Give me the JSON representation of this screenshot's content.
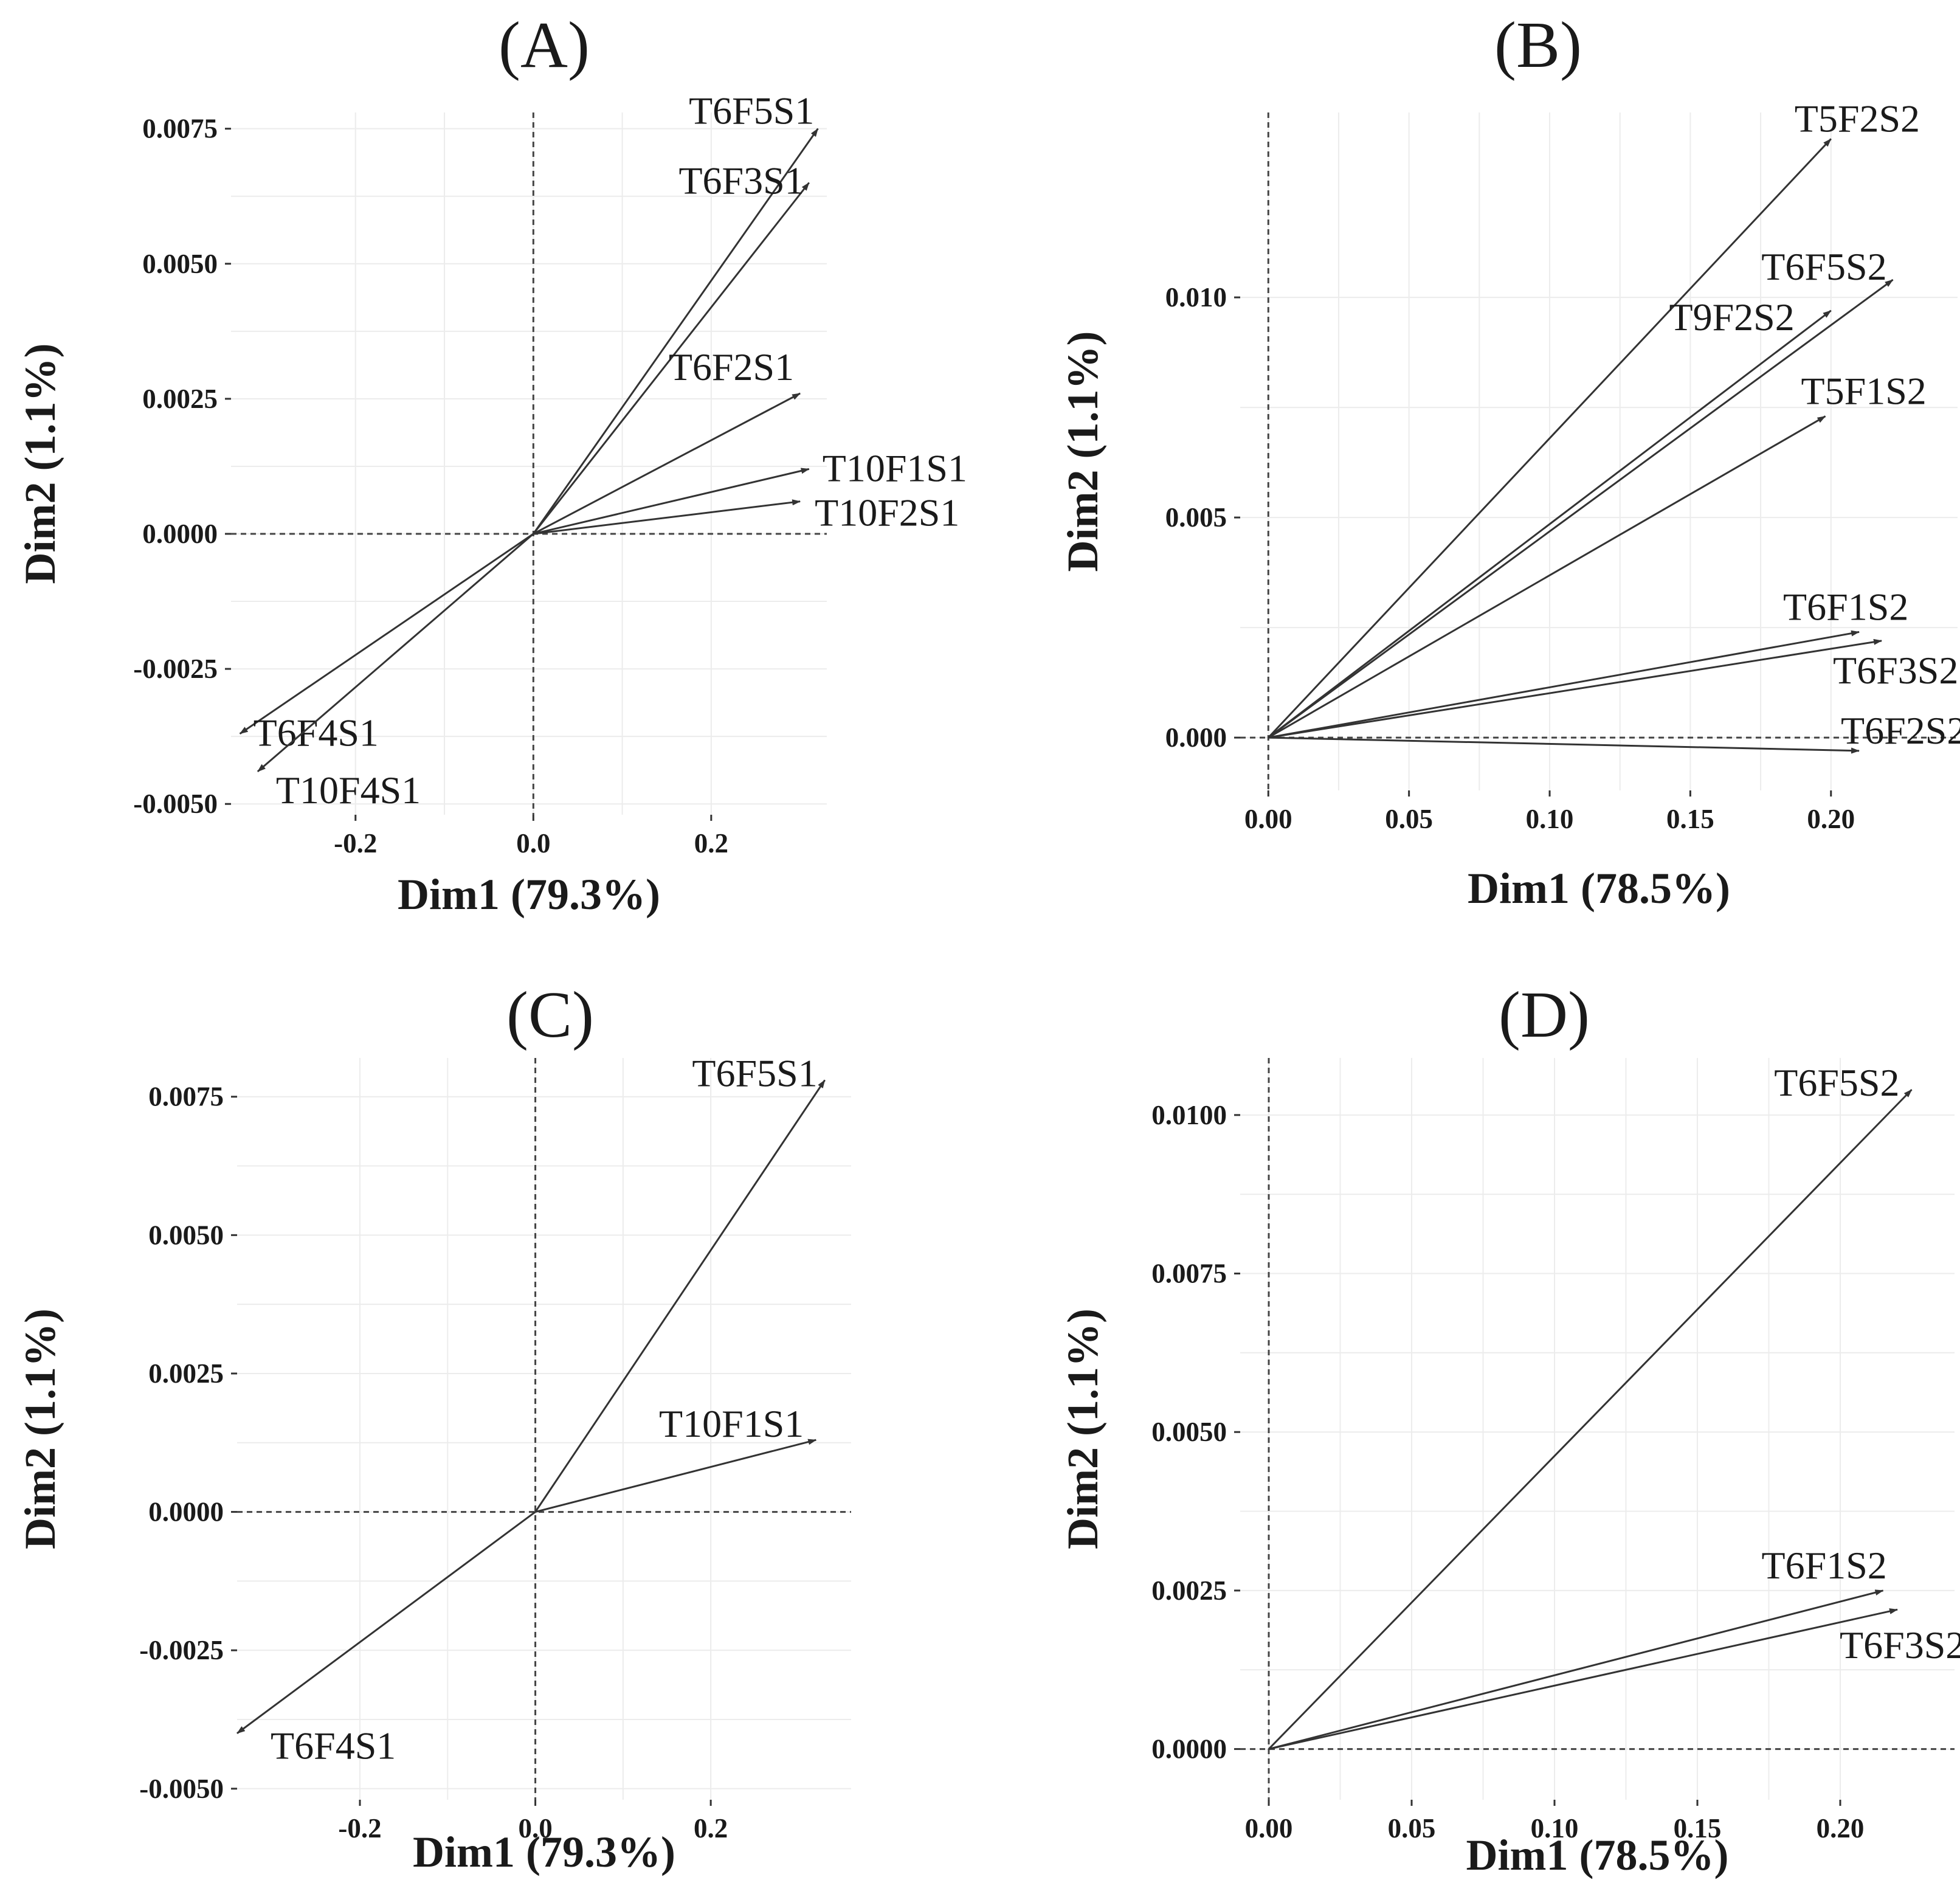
{
  "chart_data": [
    {
      "type": "vector",
      "title": "(A)",
      "xlabel": "Dim1 (79.3%)",
      "ylabel": "Dim2 (1.1%)",
      "xlim": [
        -0.34,
        0.33
      ],
      "ylim": [
        -0.0052,
        0.0078
      ],
      "xticks": [
        -0.2,
        0.0,
        0.2
      ],
      "xtick_labels": [
        "-0.2",
        "0.0",
        "0.2"
      ],
      "yticks": [
        -0.005,
        -0.0025,
        0.0,
        0.0025,
        0.005,
        0.0075
      ],
      "ytick_labels": [
        "-0.0050",
        "-0.0025",
        "0.0000",
        "0.0025",
        "0.0050",
        "0.0075"
      ],
      "vectors": [
        {
          "name": "T6F5S1",
          "x": 0.32,
          "y": 0.0075
        },
        {
          "name": "T6F3S1",
          "x": 0.31,
          "y": 0.0065
        },
        {
          "name": "T6F2S1",
          "x": 0.3,
          "y": 0.0026
        },
        {
          "name": "T10F1S1",
          "x": 0.31,
          "y": 0.0012
        },
        {
          "name": "T10F2S1",
          "x": 0.3,
          "y": 0.0006
        },
        {
          "name": "T6F4S1",
          "x": -0.33,
          "y": -0.0037
        },
        {
          "name": "T10F4S1",
          "x": -0.31,
          "y": -0.0044
        }
      ]
    },
    {
      "type": "vector",
      "title": "(B)",
      "xlabel": "Dim1 (78.5%)",
      "ylabel": "Dim2 (1.1%)",
      "xlim": [
        -0.01,
        0.245
      ],
      "ylim": [
        -0.0012,
        0.0142
      ],
      "xticks": [
        0.0,
        0.05,
        0.1,
        0.15,
        0.2
      ],
      "xtick_labels": [
        "0.00",
        "0.05",
        "0.10",
        "0.15",
        "0.20"
      ],
      "yticks": [
        0.0,
        0.005,
        0.01
      ],
      "ytick_labels": [
        "0.000",
        "0.005",
        "0.010"
      ],
      "vectors": [
        {
          "name": "T5F2S2",
          "x": 0.2,
          "y": 0.0136
        },
        {
          "name": "T6F5S2",
          "x": 0.222,
          "y": 0.0104
        },
        {
          "name": "T9F2S2",
          "x": 0.2,
          "y": 0.0097
        },
        {
          "name": "T5F1S2",
          "x": 0.198,
          "y": 0.0073
        },
        {
          "name": "T6F1S2",
          "x": 0.21,
          "y": 0.0024
        },
        {
          "name": "T6F3S2",
          "x": 0.218,
          "y": 0.0022
        },
        {
          "name": "T6F2S2",
          "x": 0.21,
          "y": -0.0003
        }
      ]
    },
    {
      "type": "vector",
      "title": "(C)",
      "xlabel": "Dim1 (79.3%)",
      "ylabel": "Dim2 (1.1%)",
      "xlim": [
        -0.34,
        0.36
      ],
      "ylim": [
        -0.0052,
        0.0082
      ],
      "xticks": [
        -0.2,
        0.0,
        0.2
      ],
      "xtick_labels": [
        "-0.2",
        "0.0",
        "0.2"
      ],
      "yticks": [
        -0.005,
        -0.0025,
        0.0,
        0.0025,
        0.005,
        0.0075
      ],
      "ytick_labels": [
        "-0.0050",
        "-0.0025",
        "0.0000",
        "0.0025",
        "0.0050",
        "0.0075"
      ],
      "vectors": [
        {
          "name": "T6F5S1",
          "x": 0.33,
          "y": 0.0078
        },
        {
          "name": "T10F1S1",
          "x": 0.32,
          "y": 0.0013
        },
        {
          "name": "T6F4S1",
          "x": -0.34,
          "y": -0.004
        }
      ]
    },
    {
      "type": "vector",
      "title": "(D)",
      "xlabel": "Dim1 (78.5%)",
      "ylabel": "Dim2 (1.1%)",
      "xlim": [
        -0.01,
        0.24
      ],
      "ylim": [
        -0.0008,
        0.0109
      ],
      "xticks": [
        0.0,
        0.05,
        0.1,
        0.15,
        0.2
      ],
      "xtick_labels": [
        "0.00",
        "0.05",
        "0.10",
        "0.15",
        "0.20"
      ],
      "yticks": [
        0.0,
        0.0025,
        0.005,
        0.0075,
        0.01
      ],
      "ytick_labels": [
        "0.0000",
        "0.0025",
        "0.0050",
        "0.0075",
        "0.0100"
      ],
      "vectors": [
        {
          "name": "T6F5S2",
          "x": 0.225,
          "y": 0.0104
        },
        {
          "name": "T6F1S2",
          "x": 0.215,
          "y": 0.0025
        },
        {
          "name": "T6F3S2",
          "x": 0.22,
          "y": 0.0022
        }
      ]
    }
  ]
}
